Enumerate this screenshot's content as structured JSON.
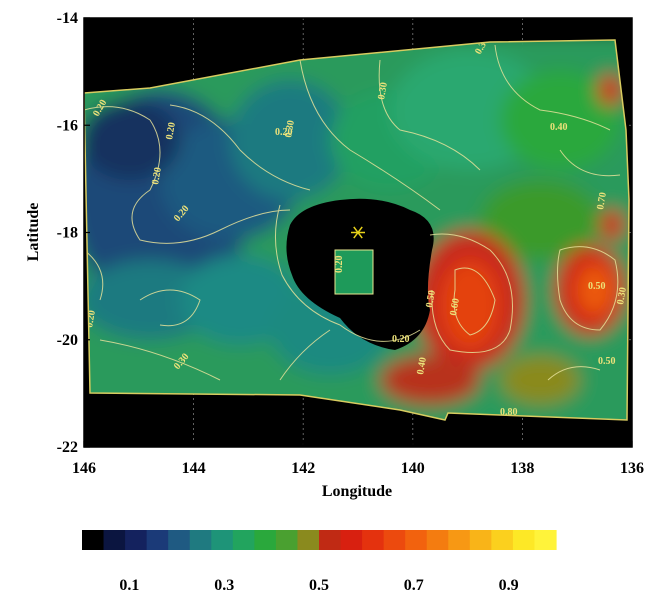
{
  "chart_data": {
    "type": "heatmap",
    "xlabel": "Longitude",
    "ylabel": "Latitude",
    "xlim": [
      146,
      136
    ],
    "ylim": [
      -22,
      -14
    ],
    "x_ticks": [
      "146",
      "144",
      "142",
      "140",
      "138",
      "136"
    ],
    "y_ticks": [
      "-14",
      "-16",
      "-18",
      "-20",
      "-22"
    ],
    "colorbar": {
      "range": [
        0.0,
        1.0
      ],
      "tick_labels": [
        "0.1",
        "0.3",
        "0.5",
        "0.7",
        "0.9"
      ],
      "tick_values": [
        0.1,
        0.3,
        0.5,
        0.7,
        0.9
      ],
      "colors": [
        "#000000",
        "#0b1540",
        "#14225e",
        "#1b3a78",
        "#1f5a82",
        "#1f7a80",
        "#1e9478",
        "#22a45e",
        "#2aa83c",
        "#4aa030",
        "#8a8a1e",
        "#c02a14",
        "#d82010",
        "#e4320e",
        "#ec4a0e",
        "#f2620e",
        "#f47c10",
        "#f79814",
        "#f9b418",
        "#fbd01e",
        "#fde826",
        "#fff33a"
      ]
    },
    "grid": true,
    "contour_labels": [
      "0.20",
      "0.20",
      "0.20",
      "0.20",
      "0.30",
      "0.30",
      "0.30",
      "0.40",
      "0.40",
      "0.50",
      "0.50",
      "0.50",
      "0.60",
      "0.70",
      "0.80",
      "0.20",
      "0.20",
      "0.30",
      "0.20",
      "0.20",
      "0.30"
    ],
    "marker": {
      "symbol": "star",
      "lon": 141.0,
      "lat": -18.0,
      "color": "#e8d21a"
    }
  }
}
